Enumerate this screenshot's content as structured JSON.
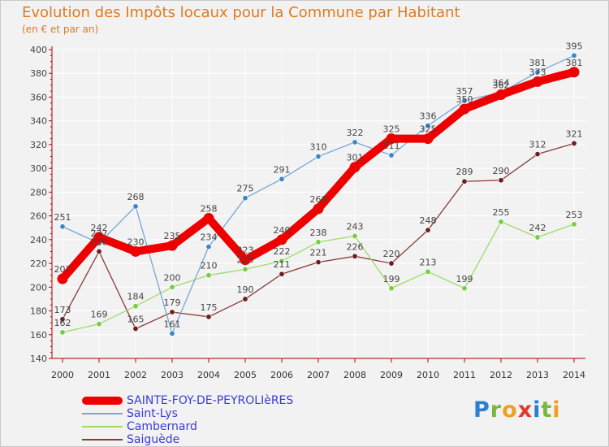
{
  "header": {
    "title": "Evolution des Impôts locaux pour la Commune par Habitant",
    "subtitle": "(en € et par an)"
  },
  "logo": {
    "text": "Proxiti",
    "letters": [
      {
        "ch": "P",
        "color": "#2a7fd1"
      },
      {
        "ch": "r",
        "color": "#79b83a"
      },
      {
        "ch": "o",
        "color": "#f0a020"
      },
      {
        "ch": "x",
        "color": "#e03a2a"
      },
      {
        "ch": "i",
        "color": "#2a7fd1"
      },
      {
        "ch": "t",
        "color": "#79b83a"
      },
      {
        "ch": "i",
        "color": "#f0a020"
      }
    ]
  },
  "chart_data": {
    "type": "line",
    "title": "Evolution des Impôts locaux pour la Commune par Habitant",
    "subtitle": "(en € et par an)",
    "x": [
      "2000",
      "2001",
      "2002",
      "2003",
      "2004",
      "2005",
      "2006",
      "2007",
      "2008",
      "2009",
      "2010",
      "2011",
      "2012",
      "2013",
      "2014"
    ],
    "ylim": [
      140,
      400
    ],
    "yticks": [
      140,
      160,
      180,
      200,
      220,
      240,
      260,
      280,
      300,
      320,
      340,
      360,
      380,
      400
    ],
    "grid": true,
    "legend_position": "bottom-left",
    "series": [
      {
        "name": "SAINTE-FOY-DE-PEYROLIèRES",
        "color": "#ee0000",
        "label_color": "#3b3bd8",
        "bold": true,
        "values": [
          207,
          242,
          230,
          235,
          258,
          223,
          240,
          266,
          301,
          325,
          325,
          350,
          362,
          373,
          381
        ]
      },
      {
        "name": "Saint-Lys",
        "color": "#74a9d8",
        "label_color": "#3b3bd8",
        "bold": false,
        "values": [
          251,
          237,
          268,
          161,
          234,
          275,
          291,
          310,
          322,
          311,
          336,
          357,
          364,
          381,
          395
        ]
      },
      {
        "name": "Cambernard",
        "color": "#99dd66",
        "label_color": "#3b3bd8",
        "bold": false,
        "values": [
          162,
          169,
          184,
          200,
          210,
          215,
          222,
          238,
          243,
          199,
          213,
          199,
          255,
          242,
          253
        ]
      },
      {
        "name": "Saiguède",
        "color": "#8b3a3a",
        "label_color": "#3b3bd8",
        "bold": false,
        "values": [
          173,
          230,
          165,
          179,
          175,
          190,
          211,
          221,
          226,
          220,
          248,
          289,
          290,
          312,
          321
        ]
      }
    ]
  }
}
